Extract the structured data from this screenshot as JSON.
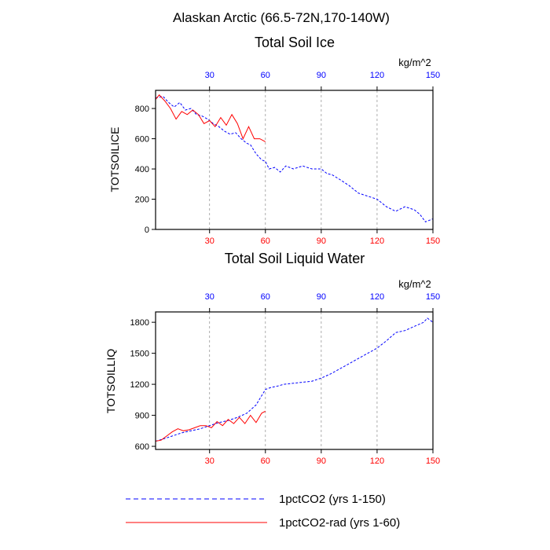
{
  "figure": {
    "title": "Alaskan Arctic (66.5-72N,170-140W)",
    "units": "kg/m^2"
  },
  "colors": {
    "series1": "#0000ff",
    "series2": "#ff0000",
    "top_ticks": "#0000ff",
    "bottom_ticks": "#ff0000",
    "frame": "#000000",
    "grid": "#999999"
  },
  "legend": {
    "position": "bottom",
    "items": [
      {
        "label": "1pctCO2 (yrs 1-150)",
        "color": "#0000ff",
        "style": "dashed"
      },
      {
        "label": "1pctCO2-rad (yrs 1-60)",
        "color": "#ff0000",
        "style": "solid"
      }
    ]
  },
  "chart_data": [
    {
      "type": "line",
      "title": "Total Soil Ice",
      "ylabel": "TOTSOILICE",
      "units": "kg/m^2",
      "xlim": [
        1,
        150
      ],
      "ylim": [
        0,
        920
      ],
      "yticks": [
        0,
        200,
        400,
        600,
        800
      ],
      "xticks": [
        30,
        60,
        90,
        120,
        150
      ],
      "xgrid": true,
      "series": [
        {
          "name": "1pctCO2 (yrs 1-150)",
          "color": "#0000ff",
          "style": "dashed",
          "x": [
            1,
            5,
            8,
            11,
            14,
            17,
            20,
            23,
            26,
            29,
            32,
            35,
            38,
            41,
            44,
            47,
            50,
            52,
            55,
            58,
            60,
            62,
            65,
            68,
            71,
            75,
            80,
            85,
            90,
            93,
            96,
            100,
            105,
            110,
            115,
            120,
            125,
            130,
            135,
            140,
            143,
            146,
            150
          ],
          "y": [
            870,
            880,
            840,
            810,
            840,
            790,
            800,
            760,
            750,
            730,
            700,
            680,
            650,
            630,
            640,
            600,
            570,
            560,
            500,
            460,
            450,
            400,
            410,
            380,
            420,
            400,
            420,
            400,
            400,
            370,
            360,
            330,
            290,
            240,
            220,
            200,
            150,
            120,
            150,
            130,
            100,
            50,
            70
          ]
        },
        {
          "name": "1pctCO2-rad (yrs 1-60)",
          "color": "#ff0000",
          "style": "solid",
          "x": [
            1,
            3,
            6,
            9,
            12,
            15,
            18,
            21,
            24,
            27,
            30,
            33,
            36,
            39,
            42,
            45,
            48,
            51,
            54,
            57,
            60
          ],
          "y": [
            860,
            890,
            850,
            800,
            730,
            780,
            760,
            790,
            760,
            700,
            720,
            680,
            740,
            690,
            760,
            700,
            600,
            680,
            600,
            600,
            580
          ]
        }
      ]
    },
    {
      "type": "line",
      "title": "Total Soil Liquid Water",
      "ylabel": "TOTSOILLIQ",
      "units": "kg/m^2",
      "xlim": [
        1,
        150
      ],
      "ylim": [
        570,
        1900
      ],
      "yticks": [
        600,
        900,
        1200,
        1500,
        1800
      ],
      "xticks": [
        30,
        60,
        90,
        120,
        150
      ],
      "xgrid": true,
      "series": [
        {
          "name": "1pctCO2 (yrs 1-150)",
          "color": "#0000ff",
          "style": "dashed",
          "x": [
            1,
            5,
            10,
            15,
            20,
            25,
            30,
            35,
            40,
            45,
            50,
            55,
            60,
            63,
            66,
            70,
            75,
            80,
            85,
            90,
            95,
            100,
            105,
            110,
            115,
            120,
            125,
            130,
            135,
            140,
            145,
            147,
            150
          ],
          "y": [
            650,
            670,
            700,
            730,
            750,
            770,
            800,
            830,
            850,
            880,
            920,
            1000,
            1150,
            1170,
            1180,
            1200,
            1210,
            1220,
            1230,
            1260,
            1300,
            1350,
            1400,
            1450,
            1500,
            1550,
            1620,
            1700,
            1720,
            1760,
            1800,
            1840,
            1800
          ]
        },
        {
          "name": "1pctCO2-rad (yrs 1-60)",
          "color": "#ff0000",
          "style": "solid",
          "x": [
            1,
            4,
            7,
            10,
            13,
            16,
            19,
            22,
            25,
            28,
            31,
            34,
            37,
            40,
            43,
            46,
            49,
            52,
            55,
            58,
            60
          ],
          "y": [
            650,
            660,
            700,
            740,
            770,
            750,
            760,
            780,
            800,
            800,
            780,
            840,
            800,
            860,
            820,
            880,
            820,
            900,
            830,
            920,
            940
          ]
        }
      ]
    }
  ]
}
